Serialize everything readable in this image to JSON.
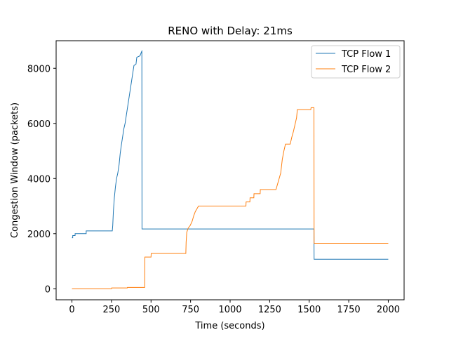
{
  "chart_data": {
    "type": "line",
    "title": "RENO with Delay: 21ms",
    "xlabel": "Time (seconds)",
    "ylabel": "Congestion Window (packets)",
    "xlim": [
      -100,
      2100
    ],
    "ylim": [
      -400,
      9000
    ],
    "xticks": [
      0,
      250,
      500,
      750,
      1000,
      1250,
      1500,
      1750,
      2000
    ],
    "yticks": [
      0,
      2000,
      4000,
      6000,
      8000
    ],
    "grid": false,
    "legend_position": "top-right",
    "series": [
      {
        "name": "TCP Flow 1",
        "color": "#1f77b4",
        "points": [
          [
            0,
            1850
          ],
          [
            5,
            1850
          ],
          [
            5,
            1930
          ],
          [
            20,
            1930
          ],
          [
            20,
            2000
          ],
          [
            90,
            2000
          ],
          [
            90,
            2100
          ],
          [
            255,
            2100
          ],
          [
            258,
            2300
          ],
          [
            262,
            2800
          ],
          [
            268,
            3300
          ],
          [
            275,
            3700
          ],
          [
            282,
            4000
          ],
          [
            290,
            4200
          ],
          [
            298,
            4500
          ],
          [
            305,
            4900
          ],
          [
            312,
            5200
          ],
          [
            320,
            5500
          ],
          [
            328,
            5800
          ],
          [
            336,
            6000
          ],
          [
            344,
            6300
          ],
          [
            352,
            6600
          ],
          [
            360,
            6900
          ],
          [
            368,
            7200
          ],
          [
            376,
            7500
          ],
          [
            384,
            7800
          ],
          [
            392,
            8100
          ],
          [
            405,
            8150
          ],
          [
            410,
            8400
          ],
          [
            430,
            8450
          ],
          [
            440,
            8600
          ],
          [
            442,
            8620
          ],
          [
            443,
            2170
          ],
          [
            1530,
            2170
          ],
          [
            1531,
            1070
          ],
          [
            2000,
            1070
          ]
        ]
      },
      {
        "name": "TCP Flow 2",
        "color": "#ff7f0e",
        "points": [
          [
            0,
            0
          ],
          [
            250,
            0
          ],
          [
            251,
            30
          ],
          [
            350,
            30
          ],
          [
            351,
            50
          ],
          [
            460,
            50
          ],
          [
            461,
            1150
          ],
          [
            500,
            1150
          ],
          [
            501,
            1280
          ],
          [
            720,
            1280
          ],
          [
            722,
            1700
          ],
          [
            726,
            2050
          ],
          [
            735,
            2200
          ],
          [
            748,
            2300
          ],
          [
            760,
            2450
          ],
          [
            770,
            2650
          ],
          [
            780,
            2800
          ],
          [
            790,
            2900
          ],
          [
            800,
            3000
          ],
          [
            1100,
            3000
          ],
          [
            1101,
            3150
          ],
          [
            1125,
            3150
          ],
          [
            1126,
            3300
          ],
          [
            1150,
            3300
          ],
          [
            1151,
            3450
          ],
          [
            1190,
            3450
          ],
          [
            1191,
            3600
          ],
          [
            1290,
            3600
          ],
          [
            1300,
            3800
          ],
          [
            1320,
            4200
          ],
          [
            1330,
            4700
          ],
          [
            1340,
            5000
          ],
          [
            1350,
            5250
          ],
          [
            1380,
            5250
          ],
          [
            1390,
            5500
          ],
          [
            1400,
            5700
          ],
          [
            1420,
            6200
          ],
          [
            1425,
            6500
          ],
          [
            1510,
            6500
          ],
          [
            1512,
            6570
          ],
          [
            1530,
            6570
          ],
          [
            1531,
            1650
          ],
          [
            2000,
            1650
          ]
        ]
      }
    ]
  }
}
